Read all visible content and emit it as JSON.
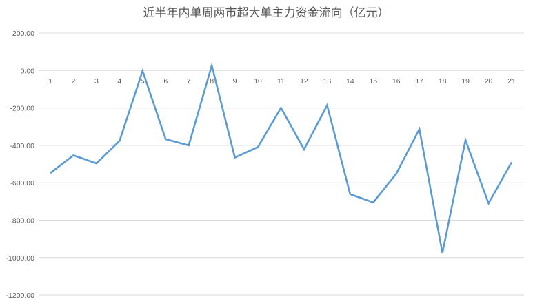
{
  "chart_data": {
    "type": "line",
    "title": "近半年内单周两市超大单主力资金流向（亿元）",
    "xlabel": "",
    "ylabel": "",
    "categories": [
      "1",
      "2",
      "3",
      "4",
      "5",
      "6",
      "7",
      "8",
      "9",
      "10",
      "11",
      "12",
      "13",
      "14",
      "15",
      "16",
      "17",
      "18",
      "19",
      "20",
      "21"
    ],
    "series": [
      {
        "values": [
          -548,
          -453,
          -496,
          -376,
          -2,
          -367,
          -400,
          27,
          -465,
          -409,
          -199,
          -421,
          -186,
          -661,
          -705,
          -551,
          -313,
          -974,
          -372,
          -710,
          -490
        ]
      }
    ],
    "ylim": [
      -1200,
      200
    ],
    "yticks": [
      "200.00",
      "0.00",
      "-200.00",
      "-400.00",
      "-600.00",
      "-800.00",
      "-1000.00",
      "-1200.00"
    ],
    "ytick_values": [
      200,
      0,
      -200,
      -400,
      -600,
      -800,
      -1000,
      -1200
    ],
    "grid": true,
    "legend": "none",
    "colors": {
      "line": "#5b9bd5",
      "grid": "#d9d9d9",
      "text": "#595959"
    }
  }
}
